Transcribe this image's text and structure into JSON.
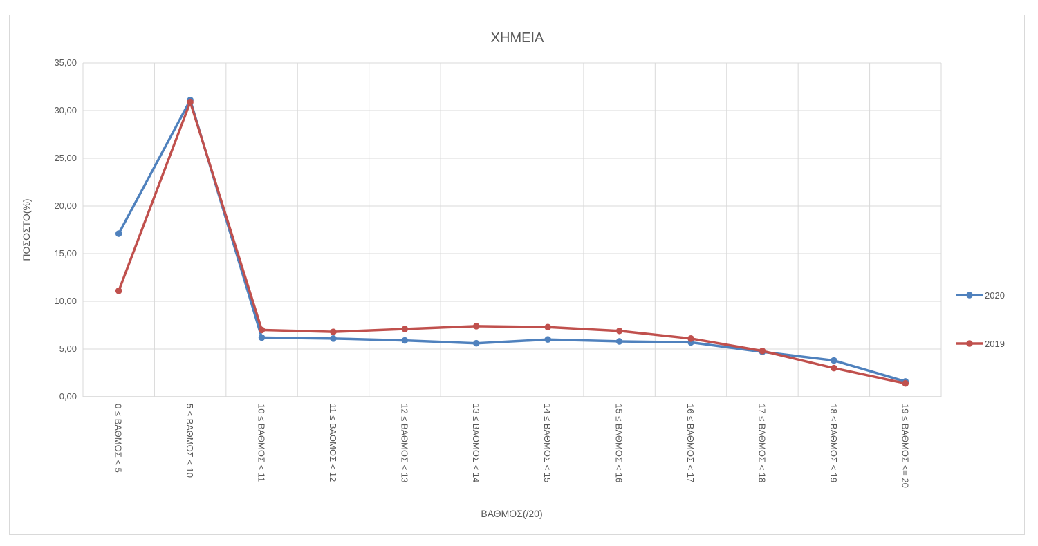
{
  "chart_data": {
    "type": "line",
    "title": "ΧΗΜΕΙΑ",
    "xlabel": "ΒΑΘΜΟΣ(/20)",
    "ylabel": "ΠΟΣΟΣΤΟ(%)",
    "ylim": [
      0,
      35
    ],
    "y_ticks": [
      "0,00",
      "5,00",
      "10,00",
      "15,00",
      "20,00",
      "25,00",
      "30,00",
      "35,00"
    ],
    "grid": true,
    "legend_position": "right",
    "categories": [
      "0 ≤ ΒΑΘΜΟΣ < 5",
      "5 ≤ ΒΑΘΜΟΣ < 10",
      "10 ≤ ΒΑΘΜΟΣ < 11",
      "11 ≤ ΒΑΘΜΟΣ < 12",
      "12 ≤ ΒΑΘΜΟΣ < 13",
      "13 ≤ ΒΑΘΜΟΣ < 14",
      "14 ≤ ΒΑΘΜΟΣ < 15",
      "15 ≤ ΒΑΘΜΟΣ < 16",
      "16 ≤ ΒΑΘΜΟΣ < 17",
      "17 ≤ ΒΑΘΜΟΣ < 18",
      "18 ≤ ΒΑΘΜΟΣ < 19",
      "19 ≤ ΒΑΘΜΟΣ <= 20"
    ],
    "series": [
      {
        "name": "2020",
        "color": "#4f81bd",
        "values": [
          17.1,
          31.1,
          6.2,
          6.1,
          5.9,
          5.6,
          6.0,
          5.8,
          5.7,
          4.7,
          3.8,
          1.6
        ]
      },
      {
        "name": "2019",
        "color": "#c0504d",
        "values": [
          11.1,
          30.9,
          7.0,
          6.8,
          7.1,
          7.4,
          7.3,
          6.9,
          6.1,
          4.8,
          3.0,
          1.4
        ]
      }
    ]
  }
}
